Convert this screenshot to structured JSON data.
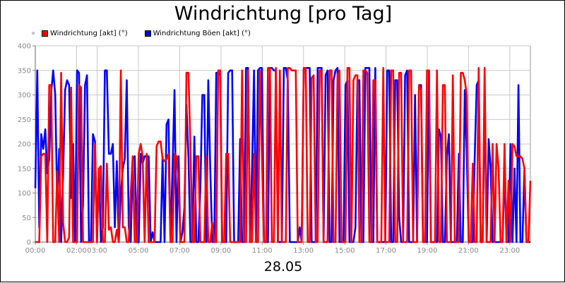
{
  "chart_data": {
    "type": "line",
    "title": "Windrichtung [pro Tag]",
    "xlabel": "28.05",
    "ylabel": "",
    "ylim": [
      0,
      400
    ],
    "yticks": [
      0,
      50,
      100,
      150,
      200,
      250,
      300,
      350,
      400
    ],
    "xlim": [
      0,
      24
    ],
    "xticks": [
      {
        "t": 0,
        "label": "00:00"
      },
      {
        "t": 2,
        "label": "02:00"
      },
      {
        "t": 3,
        "label": "03:00"
      },
      {
        "t": 5,
        "label": "05:00"
      },
      {
        "t": 7,
        "label": "07:00"
      },
      {
        "t": 9,
        "label": "09:00"
      },
      {
        "t": 11,
        "label": "11:00"
      },
      {
        "t": 13,
        "label": "13:00"
      },
      {
        "t": 15,
        "label": "15:00"
      },
      {
        "t": 17,
        "label": "17:00"
      },
      {
        "t": 19,
        "label": "19:00"
      },
      {
        "t": 21,
        "label": "21:00"
      },
      {
        "t": 23,
        "label": "23:00"
      }
    ],
    "grid": true,
    "legend_position": "top-left",
    "series": [
      {
        "name": "Windrichtung [akt] (°)",
        "color": "#ff0000",
        "values": [
          0,
          0,
          0,
          175,
          180,
          180,
          0,
          320,
          320,
          0,
          0,
          145,
          0,
          345,
          40,
          0,
          0,
          10,
          315,
          0,
          0,
          0,
          320,
          315,
          0,
          0,
          0,
          0,
          0,
          0,
          200,
          0,
          150,
          155,
          0,
          0,
          160,
          25,
          30,
          0,
          0,
          25,
          0,
          350,
          30,
          30,
          0,
          0,
          100,
          175,
          0,
          0,
          180,
          200,
          175,
          0,
          180,
          0,
          0,
          0,
          0,
          195,
          205,
          205,
          170,
          165,
          170,
          180,
          0,
          0,
          180,
          175,
          130,
          0,
          0,
          0,
          345,
          345,
          200,
          0,
          0,
          175,
          175,
          0,
          0,
          0,
          175,
          0,
          0,
          40,
          0,
          0,
          350,
          350,
          0,
          0,
          180,
          180,
          0,
          0,
          0,
          0,
          0,
          0,
          350,
          0,
          0,
          350,
          0,
          0,
          180,
          0,
          0,
          350,
          175,
          0,
          0,
          355,
          355,
          0,
          0,
          355,
          0,
          350,
          0,
          0,
          0,
          355,
          355,
          350,
          350,
          350,
          0,
          0,
          0,
          355,
          355,
          0,
          0,
          335,
          340,
          0,
          0,
          350,
          350,
          0,
          0,
          0,
          350,
          350,
          0,
          0,
          340,
          350,
          0,
          0,
          0,
          355,
          355,
          0,
          330,
          340,
          340,
          0,
          0,
          350,
          350,
          345,
          0,
          0,
          330,
          330,
          0,
          0,
          0,
          355,
          0,
          0,
          0,
          350,
          350,
          0,
          0,
          345,
          345,
          0,
          0,
          0,
          350,
          350,
          0,
          0,
          0,
          320,
          310,
          0,
          0,
          350,
          350,
          0,
          0,
          0,
          350,
          0,
          0,
          320,
          320,
          0,
          0,
          0,
          340,
          0,
          0,
          0,
          345,
          345,
          330,
          300,
          0,
          0,
          160,
          0,
          0,
          355,
          0,
          0,
          355,
          0,
          0,
          0,
          200,
          0,
          200,
          150,
          0,
          0,
          200,
          0,
          125,
          0,
          200,
          195,
          175,
          175,
          175,
          170,
          150,
          0,
          0,
          125
        ]
      },
      {
        "name": "Windrichtung Böen [akt] (°)",
        "color": "#0000ff",
        "values": [
          110,
          350,
          30,
          220,
          190,
          230,
          140,
          170,
          305,
          350,
          300,
          80,
          190,
          0,
          140,
          310,
          330,
          320,
          90,
          200,
          0,
          350,
          345,
          0,
          75,
          320,
          340,
          0,
          0,
          220,
          205,
          0,
          150,
          0,
          30,
          350,
          350,
          180,
          180,
          200,
          30,
          165,
          0,
          100,
          150,
          170,
          330,
          30,
          0,
          170,
          175,
          0,
          0,
          180,
          160,
          175,
          175,
          175,
          0,
          20,
          0,
          0,
          0,
          0,
          175,
          0,
          240,
          250,
          0,
          150,
          310,
          0,
          175,
          0,
          20,
          70,
          280,
          175,
          0,
          0,
          215,
          0,
          0,
          110,
          300,
          300,
          0,
          330,
          150,
          0,
          0,
          345,
          345,
          340,
          0,
          0,
          0,
          345,
          350,
          350,
          0,
          0,
          0,
          210,
          0,
          0,
          355,
          355,
          0,
          150,
          350,
          0,
          350,
          355,
          355,
          0,
          0,
          0,
          355,
          355,
          350,
          350,
          0,
          0,
          0,
          355,
          355,
          330,
          0,
          0,
          0,
          0,
          0,
          30,
          0,
          355,
          355,
          355,
          355,
          0,
          0,
          0,
          355,
          355,
          355,
          0,
          340,
          350,
          0,
          0,
          330,
          350,
          355,
          0,
          0,
          0,
          320,
          330,
          0,
          0,
          0,
          30,
          330,
          330,
          0,
          0,
          355,
          355,
          355,
          0,
          0,
          355,
          0,
          0,
          0,
          0,
          0,
          350,
          350,
          0,
          0,
          330,
          330,
          50,
          0,
          0,
          340,
          350,
          0,
          0,
          0,
          300,
          0,
          320,
          320,
          0,
          0,
          0,
          350,
          0,
          0,
          0,
          0,
          230,
          215,
          0,
          0,
          175,
          220,
          0,
          0,
          0,
          0,
          180,
          0,
          0,
          310,
          180,
          0,
          0,
          0,
          175,
          320,
          330,
          0,
          0,
          300,
          0,
          210,
          150,
          0,
          0,
          0,
          0,
          0,
          0,
          150,
          0,
          0,
          200,
          0,
          150,
          0,
          320,
          0,
          0,
          150,
          0,
          0,
          0
        ]
      }
    ]
  }
}
